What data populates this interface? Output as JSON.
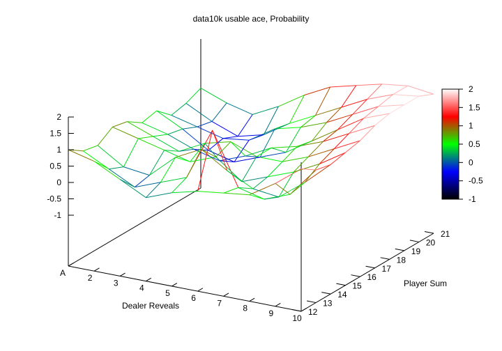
{
  "chart_data": {
    "type": "surface3d",
    "title": "data10k usable ace, Probability",
    "xlabel": "Dealer Reveals",
    "ylabel": "Player Sum",
    "x_categories": [
      "A",
      "2",
      "3",
      "4",
      "5",
      "6",
      "7",
      "8",
      "9",
      "10"
    ],
    "y_categories": [
      "12",
      "13",
      "14",
      "15",
      "16",
      "17",
      "18",
      "19",
      "20",
      "21"
    ],
    "z_ticks": [
      "-1",
      "-0.5",
      "0",
      "0.5",
      "1",
      "1.5",
      "2"
    ],
    "zlim": [
      -1,
      2
    ],
    "colorbar": {
      "ticks": [
        "-1",
        "-0.5",
        "0",
        "0.5",
        "1",
        "1.5",
        "2"
      ],
      "range": [
        -1,
        2
      ],
      "stops": [
        "#000000",
        "#0000ff",
        "#00ff00",
        "#ff0000",
        "#ffffff"
      ]
    },
    "z": [
      [
        1.0,
        0.8,
        0.4,
        0.0,
        0.3,
        0.5,
        0.6,
        0.7,
        1.2,
        1.8
      ],
      [
        0.7,
        0.3,
        -0.1,
        0.2,
        0.5,
        2.1,
        0.5,
        0.3,
        0.6,
        1.5
      ],
      [
        0.6,
        0.1,
        0.0,
        0.7,
        1.1,
        0.6,
        0.2,
        0.1,
        0.7,
        1.4
      ],
      [
        0.9,
        0.7,
        0.5,
        0.3,
        0.6,
        0.0,
        0.3,
        0.6,
        1.0,
        1.5
      ],
      [
        0.8,
        0.5,
        0.2,
        0.6,
        0.8,
        0.5,
        0.5,
        0.8,
        1.2,
        1.6
      ],
      [
        0.5,
        0.3,
        0.0,
        -0.2,
        0.1,
        0.5,
        0.7,
        1.0,
        1.4,
        1.8
      ],
      [
        0.6,
        0.2,
        -0.3,
        -0.5,
        -0.2,
        0.1,
        0.6,
        1.1,
        1.6,
        1.9
      ],
      [
        0.2,
        0.0,
        -0.2,
        -0.1,
        0.4,
        0.6,
        0.9,
        1.3,
        1.7,
        1.9
      ],
      [
        0.3,
        -0.1,
        -0.4,
        -0.2,
        0.3,
        0.7,
        1.1,
        1.5,
        1.8,
        1.9
      ],
      [
        0.5,
        0.2,
        0.0,
        0.4,
        0.9,
        1.3,
        1.5,
        1.7,
        1.8,
        1.7
      ]
    ]
  }
}
